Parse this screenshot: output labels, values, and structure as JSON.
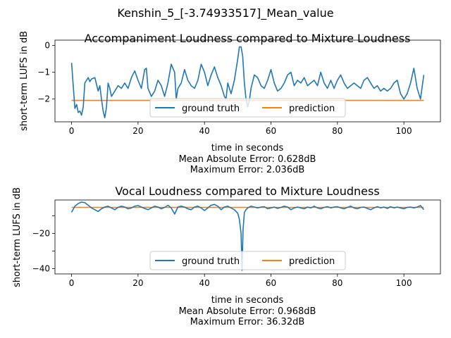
{
  "suptitle": "Kenshin_5_[-3.74933517]_Mean_value",
  "colors": {
    "ground_truth": "#1f77b4",
    "prediction": "#ff7f0e"
  },
  "chart_data": [
    {
      "type": "line",
      "title": "Accompaniment Loudness compared to Mixture Loudness",
      "xlabel": "time in seconds",
      "ylabel": "short-term LUFS in dB",
      "notes": [
        "Mean Absolute Error: 0.628dB",
        "Maximum Error: 2.036dB"
      ],
      "xlim": [
        -5,
        111
      ],
      "ylim": [
        -2.85,
        0.2
      ],
      "xticks": [
        0,
        20,
        40,
        60,
        80,
        100
      ],
      "yticks": [
        0,
        -1,
        -2
      ],
      "legend": "lower-center",
      "series": [
        {
          "name": "ground truth",
          "x": [
            0,
            0.5,
            1,
            1.5,
            2,
            2.5,
            3,
            3.5,
            4,
            4.5,
            5,
            5.5,
            6,
            7,
            8,
            8.5,
            9,
            9.5,
            10,
            10.5,
            11,
            11.5,
            12,
            13,
            14,
            15,
            16,
            17,
            18,
            19,
            20,
            21,
            22,
            22.5,
            23,
            24,
            25,
            26,
            27,
            28,
            29,
            30,
            31,
            31.5,
            32,
            33,
            34,
            35,
            36,
            37,
            38,
            39,
            40,
            41,
            42,
            43,
            44,
            45,
            46,
            46.5,
            47,
            48,
            49,
            50,
            50.5,
            51,
            51.5,
            52,
            52.5,
            53,
            53.5,
            54,
            55,
            56,
            57,
            58,
            59,
            60,
            61,
            62,
            63,
            64,
            65,
            66,
            67,
            68,
            69,
            70,
            71,
            72,
            73,
            74,
            75,
            76,
            77,
            78,
            79,
            80,
            81,
            82,
            83,
            84,
            85,
            86,
            87,
            88,
            89,
            90,
            91,
            92,
            93,
            94,
            95,
            96,
            97,
            98,
            99,
            100,
            101,
            102,
            103,
            104,
            105,
            106
          ],
          "values": [
            -0.65,
            -1.5,
            -2.35,
            -2.2,
            -2.5,
            -2.45,
            -2.6,
            -2.3,
            -1.4,
            -1.3,
            -1.2,
            -1.35,
            -1.25,
            -1.2,
            -1.7,
            -1.5,
            -2.0,
            -2.45,
            -2.7,
            -2.3,
            -1.4,
            -1.6,
            -1.9,
            -1.7,
            -1.5,
            -1.6,
            -1.4,
            -1.6,
            -1.2,
            -0.95,
            -1.3,
            -1.6,
            -0.9,
            -0.85,
            -1.6,
            -1.9,
            -1.7,
            -1.3,
            -1.5,
            -1.9,
            -1.4,
            -0.7,
            -1.0,
            -2.0,
            -1.6,
            -1.4,
            -0.9,
            -1.3,
            -1.5,
            -1.6,
            -1.3,
            -0.7,
            -1.0,
            -1.5,
            -1.1,
            -0.8,
            -1.2,
            -1.5,
            -1.9,
            -2.0,
            -1.4,
            -1.8,
            -1.3,
            -0.5,
            -0.05,
            -0.05,
            -0.4,
            -1.4,
            -2.0,
            -2.3,
            -2.05,
            -1.6,
            -1.1,
            -1.2,
            -1.5,
            -1.6,
            -1.3,
            -0.9,
            -1.4,
            -1.7,
            -1.6,
            -1.4,
            -1.1,
            -1.0,
            -1.5,
            -1.3,
            -1.4,
            -1.2,
            -1.5,
            -1.4,
            -1.3,
            -1.5,
            -1.0,
            -1.4,
            -1.6,
            -1.3,
            -1.6,
            -1.3,
            -1.1,
            -1.4,
            -1.6,
            -1.5,
            -1.4,
            -1.5,
            -1.6,
            -1.3,
            -1.2,
            -1.4,
            -1.6,
            -1.5,
            -1.7,
            -1.6,
            -1.7,
            -1.6,
            -1.4,
            -1.3,
            -1.8,
            -2.0,
            -1.8,
            -1.4,
            -0.85,
            -1.6,
            -2.0,
            -1.1
          ]
        },
        {
          "name": "prediction",
          "x": [
            0,
            106
          ],
          "values": [
            -2.05,
            -2.05
          ]
        }
      ]
    },
    {
      "type": "line",
      "title": "Vocal Loudness compared to Mixture Loudness",
      "xlabel": "time in seconds",
      "ylabel": "short-term LUFS in dB",
      "notes": [
        "Mean Absolute Error: 0.968dB",
        "Maximum Error: 36.32dB"
      ],
      "xlim": [
        -5,
        111
      ],
      "ylim": [
        -43,
        -1
      ],
      "xticks": [
        0,
        20,
        40,
        60,
        80,
        100
      ],
      "yticks": [
        -10,
        -20,
        -30,
        -40
      ],
      "ytick_labels": [
        "",
        "−20",
        "",
        "−40"
      ],
      "legend": "lower-center",
      "series": [
        {
          "name": "ground truth",
          "x": [
            0,
            1,
            2,
            3,
            4,
            5,
            6,
            7,
            8,
            9,
            10,
            11,
            12,
            13,
            14,
            15,
            16,
            17,
            18,
            19,
            20,
            21,
            22,
            23,
            24,
            25,
            26,
            27,
            28,
            29,
            30,
            31,
            32,
            33,
            34,
            35,
            36,
            37,
            38,
            39,
            40,
            41,
            42,
            43,
            44,
            45,
            46,
            47,
            48,
            49,
            50,
            50.5,
            51,
            51.3,
            51.6,
            52,
            52.5,
            53,
            54,
            55,
            56,
            57,
            58,
            59,
            60,
            61,
            62,
            63,
            64,
            65,
            66,
            67,
            68,
            69,
            70,
            71,
            72,
            73,
            74,
            75,
            76,
            77,
            78,
            79,
            80,
            81,
            82,
            83,
            84,
            85,
            86,
            87,
            88,
            89,
            90,
            91,
            92,
            93,
            94,
            95,
            96,
            97,
            98,
            99,
            100,
            101,
            102,
            103,
            104,
            105,
            106
          ],
          "values": [
            -8,
            -4.5,
            -3,
            -2.2,
            -2.5,
            -4,
            -5.5,
            -6.5,
            -7.5,
            -6,
            -5,
            -4.5,
            -5.5,
            -6.5,
            -5.2,
            -4.5,
            -5,
            -6,
            -5.5,
            -4.5,
            -4.2,
            -5,
            -5.8,
            -6.5,
            -5.5,
            -4.5,
            -5,
            -6,
            -5.2,
            -4,
            -5.5,
            -9,
            -5,
            -4.5,
            -5,
            -6,
            -6.5,
            -5,
            -4.5,
            -5.5,
            -7,
            -5.5,
            -4,
            -3.5,
            -4.5,
            -6.5,
            -5,
            -4.5,
            -5.5,
            -6.5,
            -8.5,
            -12,
            -20,
            -41,
            -18,
            -8,
            -6.5,
            -5.5,
            -4.5,
            -5,
            -5.5,
            -5,
            -4.8,
            -6,
            -5.5,
            -5,
            -5.8,
            -5.2,
            -4.5,
            -5,
            -6.5,
            -5.5,
            -5,
            -5.5,
            -6,
            -5,
            -5.5,
            -4.5,
            -5.5,
            -6,
            -5.2,
            -4.8,
            -5.5,
            -5,
            -4.8,
            -5.5,
            -6,
            -5.2,
            -4.5,
            -5.5,
            -6,
            -5.2,
            -5,
            -5.8,
            -6.5,
            -5.5,
            -4.8,
            -5.5,
            -5,
            -5.8,
            -4.8,
            -5.5,
            -5,
            -5.5,
            -6,
            -5.2,
            -5,
            -5.5,
            -5,
            -4.2,
            -6.5
          ]
        },
        {
          "name": "prediction",
          "x": [
            0,
            106
          ],
          "values": [
            -5.2,
            -5.2
          ]
        }
      ]
    }
  ]
}
